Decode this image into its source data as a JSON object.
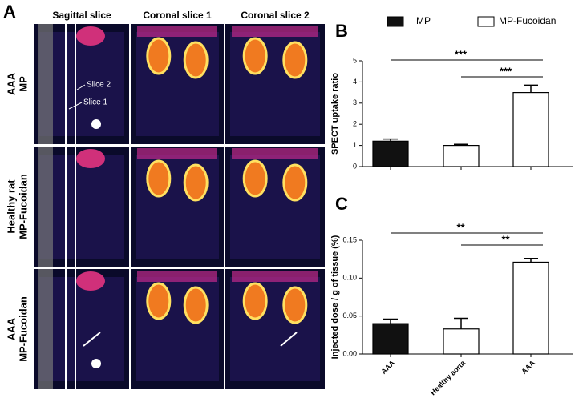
{
  "panel_a": {
    "letter": "A",
    "columns": [
      "Sagittal slice",
      "Coronal slice 1",
      "Coronal slice 2"
    ],
    "rows": [
      [
        "AAA",
        "MP"
      ],
      [
        "Healthy rat",
        "MP-Fucoidan"
      ],
      [
        "AAA",
        "MP-Fucoidan"
      ]
    ],
    "slice_labels": [
      "Slice 2",
      "Slice 1"
    ]
  },
  "chart_data": [
    {
      "type": "bar",
      "letter": "B",
      "ylabel": "SPECT uptake ratio",
      "categories": [
        null,
        null,
        null
      ],
      "values": [
        1.2,
        1.0,
        3.5
      ],
      "errors": [
        0.1,
        0.05,
        0.35
      ],
      "colors": [
        "#111111",
        "#ffffff",
        "#ffffff"
      ],
      "legend": [
        {
          "name": "MP",
          "color": "#111111"
        },
        {
          "name": "MP-Fucoidan",
          "color": "#ffffff"
        }
      ],
      "ylim": [
        0,
        5
      ],
      "yticks": [
        0,
        1,
        2,
        3,
        4,
        5
      ],
      "annotations": [
        "***",
        "***"
      ]
    },
    {
      "type": "bar",
      "letter": "C",
      "ylabel": "Injected dose / g of tissue (%)",
      "categories": [
        "AAA",
        "Healthy aorta",
        "AAA"
      ],
      "values": [
        0.04,
        0.033,
        0.121
      ],
      "errors": [
        0.006,
        0.014,
        0.005
      ],
      "colors": [
        "#111111",
        "#ffffff",
        "#ffffff"
      ],
      "ylim": [
        0,
        0.15
      ],
      "yticks": [
        {
          "value": 0,
          "label": "0.00"
        },
        {
          "value": 0.05,
          "label": "0.05"
        },
        {
          "value": 0.1,
          "label": "0.10"
        },
        {
          "value": 0.15,
          "label": "0.15"
        }
      ],
      "annotations": [
        "**",
        "**"
      ]
    }
  ]
}
